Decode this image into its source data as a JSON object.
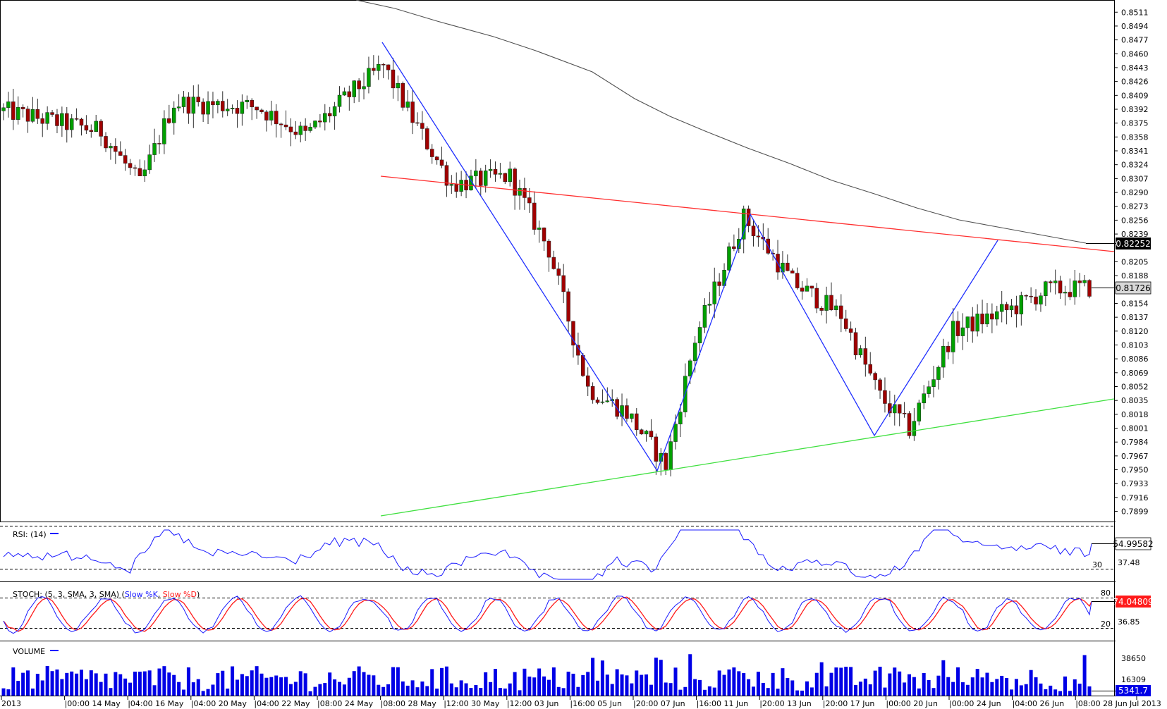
{
  "chart_data": {
    "type": "candlestick",
    "main": {
      "y_ticks": [
        "0.8511",
        "0.8494",
        "0.8477",
        "0.8460",
        "0.8443",
        "0.8426",
        "0.8409",
        "0.8392",
        "0.8375",
        "0.8358",
        "0.8341",
        "0.8324",
        "0.8307",
        "0.8290",
        "0.8273",
        "0.8256",
        "0.8239",
        "0.8205",
        "0.8188",
        "0.8154",
        "0.8137",
        "0.8120",
        "0.8103",
        "0.8086",
        "0.8069",
        "0.8052",
        "0.8035",
        "0.8018",
        "0.8001",
        "0.7984",
        "0.7967",
        "0.7950",
        "0.7933",
        "0.7916",
        "0.7899"
      ],
      "ylim": [
        0.789,
        0.8519
      ],
      "candles_seed": 0,
      "ma_label": "0.82252",
      "ma_value": 0.82252,
      "last_label": "0.81726",
      "last_value": 0.81726
    },
    "x_labels": [
      "2013",
      "00:00 14 May",
      "04:00 16 May",
      "04:00 20 May",
      "04:00 22 May",
      "08:00 24 May",
      "08:00 28 May",
      "12:00 30 May",
      "12:00 03 Jun",
      "16:00 05 Jun",
      "20:00 07 Jun",
      "16:00 11 Jun",
      "20:00 13 Jun",
      "20:00 17 Jun",
      "00:00 20 Jun",
      "00:00 24 Jun",
      "04:00 26 Jun",
      "08:00 28 Jun",
      "Jul 2013"
    ],
    "rsi": {
      "title": "RSI: (14)",
      "ticks": [
        "37.48"
      ],
      "level_label": "30",
      "value_label": "54.99582",
      "value": 54.99582
    },
    "stoch": {
      "title_prefix": "STOCH: (5, 3, SMA, 3, SMA) (",
      "k_label": "Slow %K",
      "separator": ", ",
      "d_label": "Slow %D",
      "title_suffix": ")",
      "ticks": [
        "36.85"
      ],
      "upper_label": "80",
      "lower_label": "20",
      "value_label": "74.04809",
      "value": 74.04809
    },
    "volume": {
      "title": "VOLUME",
      "ticks": [
        "38650",
        "16309"
      ],
      "value_label": "5341.7",
      "value": 5341.7
    }
  },
  "colors": {
    "bull": "#00a000",
    "bear": "#a00000",
    "ma": "#505050",
    "resistance": "#ff3030",
    "support": "#40e040",
    "pattern": "#2030ff",
    "rsi": "#1a1aff",
    "stoch_k": "#1a1aff",
    "stoch_d": "#ff1a1a",
    "volume": "#0000e6",
    "volume_box": "#0000e6",
    "last_box": "#d8d8d8",
    "ma_box": "#000000"
  }
}
